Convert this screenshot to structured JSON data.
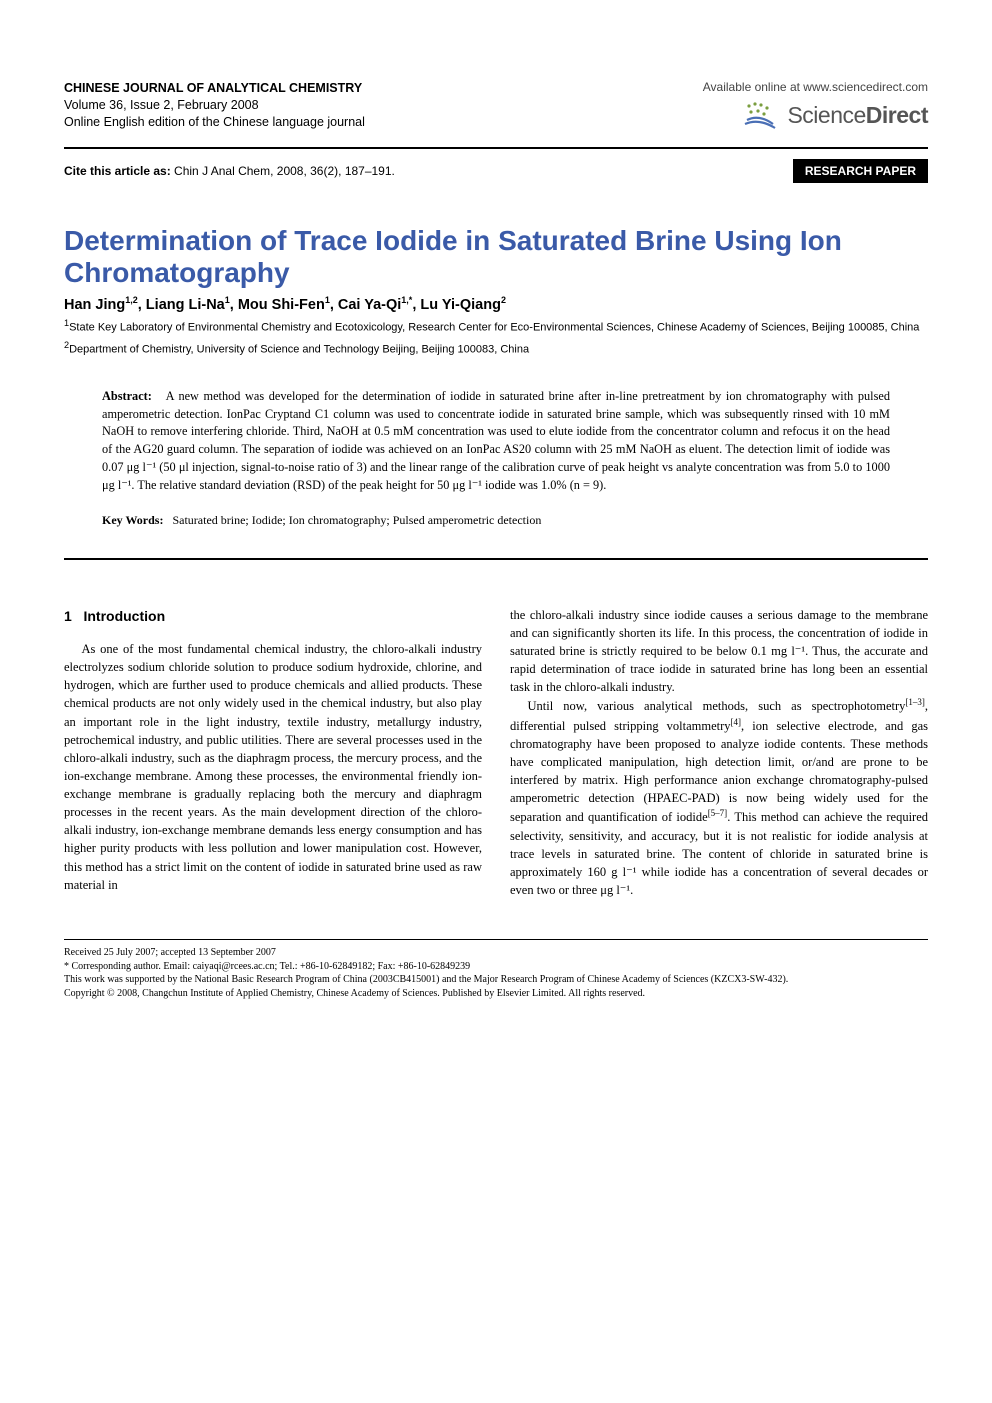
{
  "header": {
    "journal_title": "CHINESE JOURNAL OF ANALYTICAL CHEMISTRY",
    "volume_issue": "Volume 36, Issue 2, February 2008",
    "edition": "Online English edition of the Chinese language journal",
    "available_text": "Available online at www.sciencedirect.com",
    "sd_science": "Science",
    "sd_direct": "Direct",
    "sd_icon_colors": {
      "dot": "#7a9e3f",
      "swoosh": "#4a6fb5"
    }
  },
  "cite": {
    "label": "Cite this article as:",
    "text": " Chin J Anal Chem, 2008, 36(2), 187–191.",
    "badge": "RESEARCH PAPER"
  },
  "article": {
    "title": "Determination of Trace Iodide in Saturated Brine Using Ion Chromatography",
    "title_color": "#3a5aa8",
    "authors_html": "Han Jing<sup>1,2</sup>, Liang Li-Na<sup>1</sup>, Mou Shi-Fen<sup>1</sup>, Cai Ya-Qi<sup>1,*</sup>, Lu Yi-Qiang<sup>2</sup>",
    "affil1": "State Key Laboratory of Environmental Chemistry and Ecotoxicology, Research Center for Eco-Environmental Sciences, Chinese Academy of Sciences, Beijing 100085, China",
    "affil2": "Department of Chemistry, University of Science and Technology Beijing, Beijing 100083, China"
  },
  "abstract": {
    "label": "Abstract:",
    "text": "A new method was developed for the determination of iodide in saturated brine after in-line pretreatment by ion chromatography with pulsed amperometric detection. IonPac Cryptand C1 column was used to concentrate iodide in saturated brine sample, which was subsequently rinsed with 10 mM NaOH to remove interfering chloride. Third, NaOH at 0.5 mM concentration was used to elute iodide from the concentrator column and refocus it on the head of the AG20 guard column. The separation of iodide was achieved on an IonPac AS20 column with 25 mM NaOH as eluent. The detection limit of iodide was 0.07 μg l⁻¹ (50 μl injection, signal-to-noise ratio of 3) and the linear range of the calibration curve of peak height vs analyte concentration was from 5.0 to 1000 μg l⁻¹. The relative standard deviation (RSD) of the peak height for 50 μg l⁻¹ iodide was 1.0% (n = 9)."
  },
  "keywords": {
    "label": "Key Words:",
    "text": "Saturated brine; Iodide; Ion chromatography; Pulsed amperometric detection"
  },
  "body": {
    "section_number": "1",
    "section_title": "Introduction",
    "col1_p1": "As one of the most fundamental chemical industry, the chloro-alkali industry electrolyzes sodium chloride solution to produce sodium hydroxide, chlorine, and hydrogen, which are further used to produce chemicals and allied products. These chemical products are not only widely used in the chemical industry, but also play an important role in the light industry, textile industry, metallurgy industry, petrochemical industry, and public utilities. There are several processes used in the chloro-alkali industry, such as the diaphragm process, the mercury process, and the ion-exchange membrane. Among these processes, the environmental friendly ion-exchange membrane is gradually replacing both the mercury and diaphragm processes in the recent years. As the main development direction of the chloro-alkali industry, ion-exchange membrane demands less energy consumption and has higher purity products with less pollution and lower manipulation cost. However, this method has a strict limit on the content of iodide in saturated brine used as raw material in",
    "col2_p1": "the chloro-alkali industry since iodide causes a serious damage to the membrane and can significantly shorten its life. In this process, the concentration of iodide in saturated brine is strictly required to be below 0.1 mg l⁻¹. Thus, the accurate and rapid determination of trace iodide in saturated brine has long been an essential task in the chloro-alkali industry.",
    "col2_p2_html": "Until now, various analytical methods, such as spectrophotometry<sup class=\"ref\">[1–3]</sup>, differential pulsed stripping voltammetry<sup class=\"ref\">[4]</sup>, ion selective electrode, and gas chromatography have been proposed to analyze iodide contents. These methods have complicated manipulation, high detection limit, or/and are prone to be interfered by matrix. High performance anion exchange chromatography-pulsed amperometric detection (HPAEC-PAD) is now being widely used for the separation and quantification of iodide<sup class=\"ref\">[5–7]</sup>. This method can achieve the required selectivity, sensitivity, and accuracy, but it is not realistic for iodide analysis at trace levels in saturated brine. The content of chloride in saturated brine is approximately 160 g l⁻¹ while iodide has a concentration of several decades or even two or three μg l⁻¹."
  },
  "footnotes": {
    "received": "Received 25 July 2007; accepted 13 September 2007",
    "corresponding": "* Corresponding author. Email: caiyaqi@rcees.ac.cn; Tel.: +86-10-62849182; Fax: +86-10-62849239",
    "funding": "This work was supported by the National Basic Research Program of China (2003CB415001) and the Major Research Program of Chinese Academy of Sciences (KZCX3-SW-432).",
    "copyright": "Copyright © 2008, Changchun Institute of Applied Chemistry, Chinese Academy of Sciences. Published by Elsevier Limited. All rights reserved."
  }
}
